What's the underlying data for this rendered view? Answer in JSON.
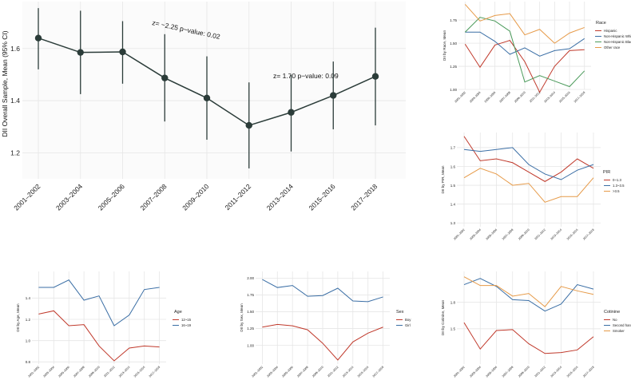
{
  "chart_data": [
    {
      "id": "main",
      "type": "line",
      "ylabel": "DII Overall Sample, Mean (95% CI)",
      "categories": [
        "2001–2002",
        "2003–2004",
        "2005–2006",
        "2007–2008",
        "2009–2010",
        "2011–2012",
        "2013–2014",
        "2015–2016",
        "2017–2018"
      ],
      "values": [
        1.64,
        1.585,
        1.587,
        1.487,
        1.41,
        1.305,
        1.355,
        1.42,
        1.493
      ],
      "lower": [
        1.52,
        1.425,
        1.465,
        1.32,
        1.25,
        1.14,
        1.205,
        1.29,
        1.305
      ],
      "upper": [
        1.755,
        1.745,
        1.705,
        1.655,
        1.57,
        1.47,
        1.5,
        1.55,
        1.68
      ],
      "ylim": [
        1.1,
        1.78
      ],
      "yticks": [
        "1.2",
        "1.4",
        "1.6"
      ],
      "annotations": [
        {
          "text": "z= −2.25   p−value: 0.02"
        },
        {
          "text": "z= 1.70   p−value: 0.09"
        }
      ],
      "colors": {
        "line": "#2b3c39"
      }
    },
    {
      "id": "race",
      "type": "line",
      "ylabel": "DII by Race, Mean",
      "categories": [
        "2001–2002",
        "2003–2004",
        "2005–2006",
        "2007–2008",
        "2009–2010",
        "2011–2012",
        "2013–2014",
        "2015–2016",
        "2017–2018"
      ],
      "ylim": [
        1.0,
        1.95
      ],
      "yticks": [
        "1.00",
        "1.25",
        "1.50",
        "1.75"
      ],
      "legend_title": "Race",
      "series": [
        {
          "name": "Hispanic",
          "color": "#c0392b",
          "values": [
            1.49,
            1.24,
            1.48,
            1.53,
            1.3,
            0.97,
            1.25,
            1.42,
            1.43
          ]
        },
        {
          "name": "Non-Hispanic White",
          "color": "#3a6ea5",
          "values": [
            1.62,
            1.62,
            1.52,
            1.38,
            1.45,
            1.36,
            1.42,
            1.44,
            1.55
          ]
        },
        {
          "name": "Non-Hispanic Black",
          "color": "#4a9a5a",
          "values": [
            1.62,
            1.78,
            1.74,
            1.63,
            1.08,
            1.15,
            1.09,
            1.03,
            1.2
          ]
        },
        {
          "name": "Other race",
          "color": "#e69a48",
          "values": [
            1.92,
            1.74,
            1.8,
            1.82,
            1.59,
            1.65,
            1.5,
            1.61,
            1.67
          ]
        }
      ]
    },
    {
      "id": "pir",
      "type": "line",
      "ylabel": "DII by PIR, Mean",
      "categories": [
        "2001–2002",
        "2003–2004",
        "2005–2006",
        "2007–2008",
        "2009–2010",
        "2011–2012",
        "2013–2014",
        "2015–2016",
        "2017–2018"
      ],
      "ylim": [
        1.28,
        1.78
      ],
      "yticks": [
        "1.3",
        "1.4",
        "1.5",
        "1.6",
        "1.7"
      ],
      "legend_title": "PIR",
      "series": [
        {
          "name": "0~1.3",
          "color": "#c0392b",
          "values": [
            1.76,
            1.63,
            1.64,
            1.62,
            1.57,
            1.52,
            1.57,
            1.64,
            1.59
          ]
        },
        {
          "name": "1.3~3.5",
          "color": "#3a6ea5",
          "values": [
            1.69,
            1.68,
            1.69,
            1.7,
            1.61,
            1.56,
            1.53,
            1.58,
            1.61
          ]
        },
        {
          "name": ">3.5",
          "color": "#e69a48",
          "values": [
            1.54,
            1.59,
            1.56,
            1.5,
            1.51,
            1.41,
            1.44,
            1.44,
            1.54
          ]
        }
      ]
    },
    {
      "id": "age",
      "type": "line",
      "ylabel": "DII by Age, Mean",
      "categories": [
        "2001–2002",
        "2003–2004",
        "2005–2006",
        "2007–2008",
        "2009–2010",
        "2011–2012",
        "2013–2014",
        "2015–2016",
        "2017–2018"
      ],
      "ylim": [
        0.78,
        1.65
      ],
      "yticks": [
        "0.8",
        "1.0",
        "1.2",
        "1.4"
      ],
      "legend_title": "Age",
      "series": [
        {
          "name": "12~15",
          "color": "#c0392b",
          "values": [
            1.25,
            1.28,
            1.14,
            1.15,
            0.95,
            0.81,
            0.93,
            0.95,
            0.94
          ]
        },
        {
          "name": "16~19",
          "color": "#3a6ea5",
          "values": [
            1.5,
            1.5,
            1.57,
            1.38,
            1.42,
            1.14,
            1.24,
            1.48,
            1.5
          ]
        }
      ]
    },
    {
      "id": "sex",
      "type": "line",
      "ylabel": "DII by Sex, Mean",
      "categories": [
        "2001–2002",
        "2003–2004",
        "2005–2006",
        "2007–2008",
        "2009–2010",
        "2011–2012",
        "2013–2014",
        "2015–2016",
        "2017–2018"
      ],
      "ylim": [
        0.72,
        2.1
      ],
      "yticks": [
        "1.00",
        "1.25",
        "1.50",
        "1.75",
        "2.00"
      ],
      "legend_title": "Sex",
      "series": [
        {
          "name": "Boy",
          "color": "#c0392b",
          "values": [
            1.27,
            1.31,
            1.29,
            1.23,
            1.03,
            0.78,
            1.05,
            1.18,
            1.27
          ]
        },
        {
          "name": "Girl",
          "color": "#3a6ea5",
          "values": [
            1.98,
            1.86,
            1.89,
            1.73,
            1.74,
            1.85,
            1.66,
            1.65,
            1.72
          ]
        }
      ]
    },
    {
      "id": "cotinine",
      "type": "line",
      "ylabel": "DII by Cotinine, Mean",
      "categories": [
        "2001–2002",
        "2003–2004",
        "2005–2006",
        "2007–2008",
        "2009–2010",
        "2011–2012",
        "2013–2014",
        "2015–2016",
        "2017–2018"
      ],
      "ylim": [
        1.1,
        2.15
      ],
      "yticks": [
        "1.5",
        "1.8"
      ],
      "legend_title": "Cotinine",
      "series": [
        {
          "name": "No",
          "color": "#c0392b",
          "values": [
            1.57,
            1.27,
            1.48,
            1.49,
            1.33,
            1.22,
            1.23,
            1.26,
            1.41
          ]
        },
        {
          "name": "Second hand",
          "color": "#3a6ea5",
          "values": [
            2.0,
            2.07,
            1.98,
            1.83,
            1.82,
            1.7,
            1.78,
            2.0,
            1.95
          ]
        },
        {
          "name": "Smoker",
          "color": "#e69a48",
          "values": [
            2.09,
            1.99,
            1.99,
            1.87,
            1.9,
            1.75,
            1.98,
            1.93,
            1.89
          ]
        }
      ]
    }
  ]
}
